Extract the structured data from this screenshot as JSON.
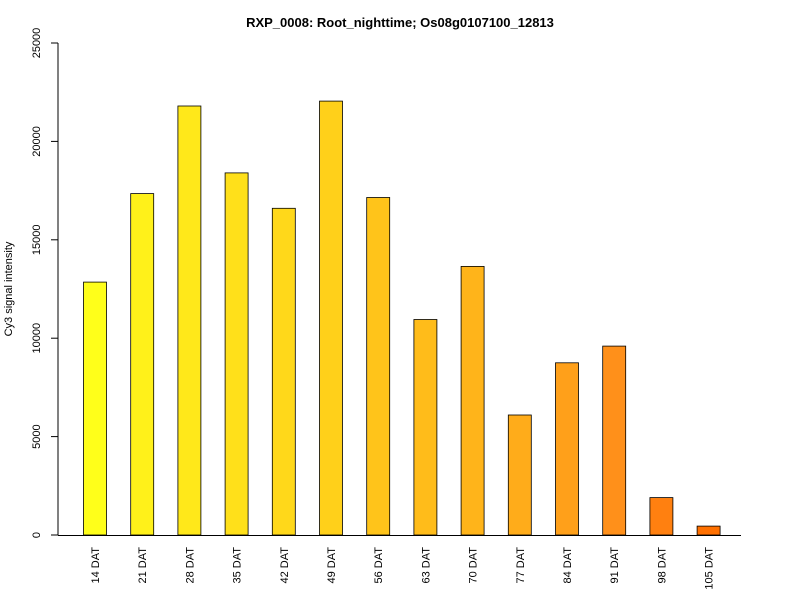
{
  "chart_data": {
    "type": "bar",
    "title": "RXP_0008: Root_nighttime; Os08g0107100_12813",
    "xlabel": "",
    "ylabel": "Cy3 signal intensity",
    "ylim": [
      0,
      25000
    ],
    "yticks": [
      0,
      5000,
      10000,
      15000,
      20000,
      25000
    ],
    "grid": false,
    "categories": [
      "14 DAT",
      "21 DAT",
      "28 DAT",
      "35 DAT",
      "42 DAT",
      "49 DAT",
      "56 DAT",
      "63 DAT",
      "70 DAT",
      "77 DAT",
      "84 DAT",
      "91 DAT",
      "98 DAT",
      "105 DAT"
    ],
    "values": [
      12850,
      17350,
      21800,
      18400,
      16600,
      22050,
      17150,
      10950,
      13650,
      6100,
      8750,
      9600,
      1900,
      450
    ],
    "colors": [
      "#FFFF1A",
      "#FFF11A",
      "#FFE81A",
      "#FFE01A",
      "#FFD81A",
      "#FFD01A",
      "#FFC41A",
      "#FFBC1A",
      "#FFB41A",
      "#FFAC1A",
      "#FFA01A",
      "#FF901A",
      "#FF8010",
      "#FF7000"
    ]
  }
}
